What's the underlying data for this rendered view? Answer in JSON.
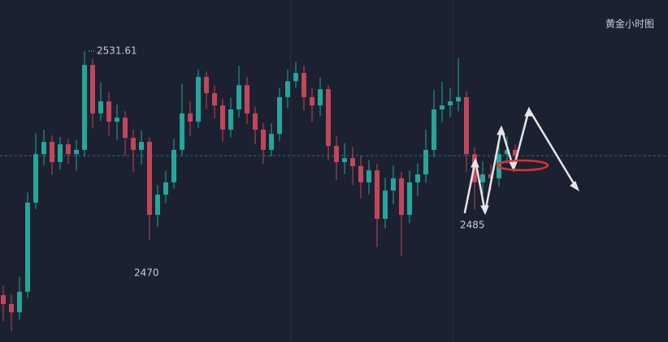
{
  "chart_data": {
    "type": "candlestick",
    "title": "黄金小时图",
    "up_color": "#26a69a",
    "down_color": "#c2465a",
    "ylim": [
      2436.7,
      2548.3
    ],
    "open": [
      2452.0,
      2449.1,
      2446.4,
      2453.1,
      2482.2,
      2498.0,
      2502.0,
      2495.4,
      2501.2,
      2498.0,
      2499.4,
      2527.1,
      2511.3,
      2515.2,
      2508.6,
      2509.9,
      2503.3,
      2499.4,
      2502.0,
      2478.2,
      2484.8,
      2488.8,
      2499.4,
      2511.3,
      2508.6,
      2523.2,
      2517.9,
      2513.9,
      2506.0,
      2512.6,
      2520.5,
      2511.3,
      2506.0,
      2499.4,
      2504.6,
      2516.6,
      2521.8,
      2524.5,
      2516.6,
      2513.9,
      2519.2,
      2500.7,
      2495.4,
      2496.7,
      2494.1,
      2488.8,
      2492.7,
      2476.9,
      2486.1,
      2490.1,
      2478.2,
      2488.8,
      2491.4,
      2499.4,
      2512.6,
      2513.9,
      2515.2,
      2516.6,
      2498.0,
      2488.8,
      2491.4,
      2490.1,
      2498.0,
      2499.4
    ],
    "high": [
      2455.0,
      2452.3,
      2458.0,
      2485.5,
      2504.8,
      2506.0,
      2504.1,
      2503.6,
      2503.0,
      2502.5,
      2531.61,
      2529.0,
      2521.5,
      2518.3,
      2514.2,
      2512.0,
      2506.1,
      2505.8,
      2503.5,
      2487.9,
      2492.5,
      2503.0,
      2521.0,
      2515.4,
      2525.6,
      2525.0,
      2520.3,
      2516.0,
      2516.4,
      2526.8,
      2523.1,
      2513.6,
      2508.2,
      2508.0,
      2519.7,
      2525.5,
      2528.1,
      2526.9,
      2519.8,
      2523.0,
      2520.5,
      2503.9,
      2501.6,
      2500.3,
      2497.5,
      2496.0,
      2494.8,
      2490.4,
      2494.3,
      2492.2,
      2492.6,
      2495.0,
      2506.0,
      2518.9,
      2521.6,
      2519.5,
      2529.4,
      2518.5,
      2500.2,
      2495.6,
      2494.7,
      2502.1,
      2503.8,
      2501.2
    ],
    "low": [
      2443.5,
      2440.2,
      2444.0,
      2451.0,
      2480.1,
      2494.3,
      2491.2,
      2493.0,
      2494.8,
      2492.6,
      2497.2,
      2506.4,
      2508.8,
      2503.9,
      2502.7,
      2497.5,
      2492.0,
      2494.6,
      2470,
      2474.3,
      2482.0,
      2486.7,
      2497.6,
      2503.8,
      2506.5,
      2512.8,
      2509.7,
      2502.1,
      2503.5,
      2510.0,
      2507.9,
      2501.2,
      2494.8,
      2497.3,
      2502.3,
      2513.0,
      2519.6,
      2512.2,
      2508.6,
      2510.4,
      2496.2,
      2489.7,
      2491.5,
      2488.0,
      2483.6,
      2484.9,
      2467.6,
      2473.8,
      2481.7,
      2464.9,
      2475.5,
      2484.3,
      2488.7,
      2497.0,
      2508.4,
      2510.1,
      2512.0,
      2492.3,
      2480.0,
      2485,
      2486.3,
      2487.4,
      2494.9,
      2495.0
    ],
    "close": [
      2449.1,
      2446.4,
      2453.1,
      2482.2,
      2498.0,
      2502.0,
      2495.4,
      2501.2,
      2498.0,
      2499.4,
      2527.1,
      2511.3,
      2515.2,
      2508.6,
      2509.9,
      2503.3,
      2499.4,
      2502.0,
      2478.2,
      2484.8,
      2488.8,
      2499.4,
      2511.3,
      2508.6,
      2523.2,
      2517.9,
      2513.9,
      2506.0,
      2512.6,
      2520.5,
      2511.3,
      2506.0,
      2499.4,
      2504.6,
      2516.6,
      2521.8,
      2524.5,
      2516.6,
      2513.9,
      2519.2,
      2500.7,
      2495.4,
      2496.7,
      2494.1,
      2488.8,
      2492.7,
      2476.9,
      2486.1,
      2490.1,
      2478.2,
      2488.8,
      2491.4,
      2499.4,
      2512.6,
      2513.9,
      2515.2,
      2516.6,
      2498.0,
      2488.8,
      2491.4,
      2490.1,
      2498.0,
      2499.4,
      2497.5
    ],
    "annotations": [
      {
        "label": "2531.61"
      },
      {
        "label": "2470"
      },
      {
        "label": "2485"
      }
    ]
  }
}
